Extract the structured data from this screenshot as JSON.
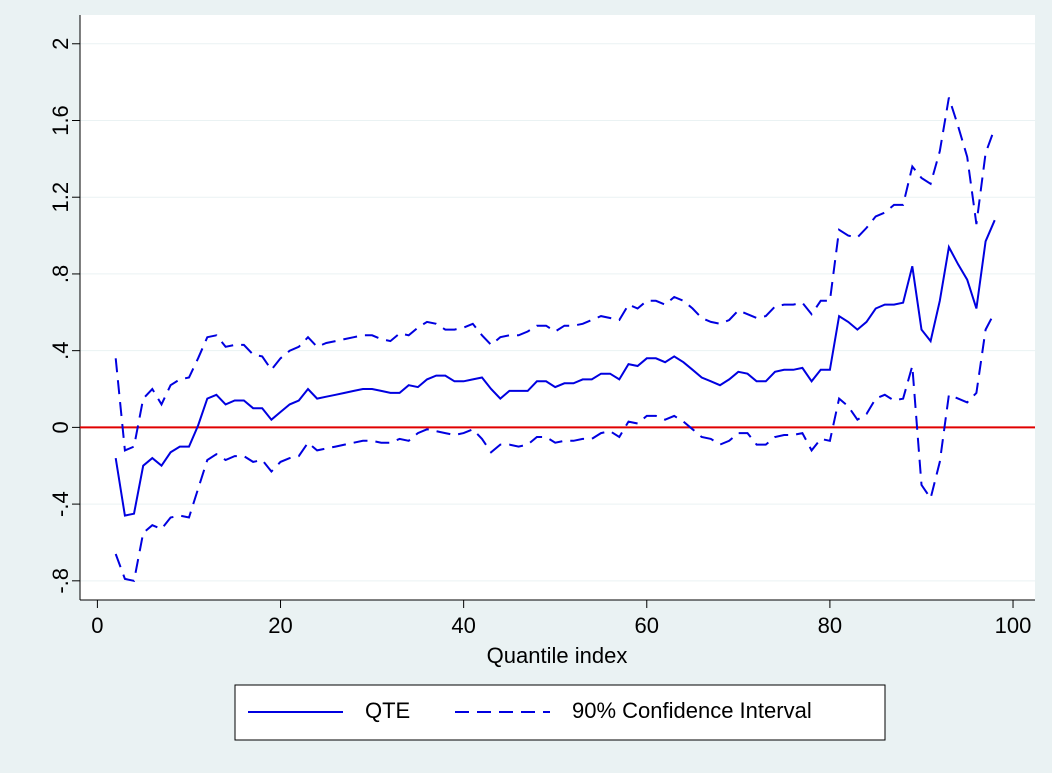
{
  "chart_data": {
    "type": "line",
    "xlabel": "Quantile index",
    "x": [
      2,
      3,
      4,
      5,
      6,
      7,
      8,
      9,
      10,
      11,
      12,
      13,
      14,
      15,
      16,
      17,
      18,
      19,
      20,
      21,
      22,
      23,
      24,
      25,
      26,
      27,
      28,
      29,
      30,
      31,
      32,
      33,
      34,
      35,
      36,
      37,
      38,
      39,
      40,
      41,
      42,
      43,
      44,
      45,
      46,
      47,
      48,
      49,
      50,
      51,
      52,
      53,
      54,
      55,
      56,
      57,
      58,
      59,
      60,
      61,
      62,
      63,
      64,
      65,
      66,
      67,
      68,
      69,
      70,
      71,
      72,
      73,
      74,
      75,
      76,
      77,
      78,
      79,
      80,
      81,
      82,
      83,
      84,
      85,
      86,
      87,
      88,
      89,
      90,
      91,
      92,
      93,
      94,
      95,
      96,
      97,
      98
    ],
    "series": [
      {
        "name": "QTE",
        "color": "#0000e0",
        "dash": false,
        "values": [
          -0.16,
          -0.46,
          -0.45,
          -0.2,
          -0.16,
          -0.2,
          -0.13,
          -0.1,
          -0.1,
          0.01,
          0.15,
          0.17,
          0.12,
          0.14,
          0.14,
          0.1,
          0.1,
          0.04,
          0.08,
          0.12,
          0.14,
          0.2,
          0.15,
          0.16,
          0.17,
          0.18,
          0.19,
          0.2,
          0.2,
          0.19,
          0.18,
          0.18,
          0.22,
          0.21,
          0.25,
          0.27,
          0.27,
          0.24,
          0.24,
          0.25,
          0.26,
          0.2,
          0.15,
          0.19,
          0.19,
          0.19,
          0.24,
          0.24,
          0.21,
          0.23,
          0.23,
          0.25,
          0.25,
          0.28,
          0.28,
          0.25,
          0.33,
          0.32,
          0.36,
          0.36,
          0.34,
          0.37,
          0.34,
          0.3,
          0.26,
          0.24,
          0.22,
          0.25,
          0.29,
          0.28,
          0.24,
          0.24,
          0.29,
          0.3,
          0.3,
          0.31,
          0.24,
          0.3,
          0.3,
          0.58,
          0.55,
          0.51,
          0.55,
          0.62,
          0.64,
          0.64,
          0.65,
          0.84,
          0.51,
          0.45,
          0.66,
          0.94,
          0.85,
          0.77,
          0.62,
          0.97,
          1.08
        ]
      },
      {
        "name": "90% Confidence Interval",
        "color": "#0000e0",
        "dash": true,
        "upper": [
          0.36,
          -0.12,
          -0.1,
          0.15,
          0.2,
          0.12,
          0.22,
          0.25,
          0.26,
          0.36,
          0.47,
          0.48,
          0.42,
          0.43,
          0.43,
          0.38,
          0.37,
          0.3,
          0.36,
          0.4,
          0.42,
          0.47,
          0.42,
          0.44,
          0.45,
          0.46,
          0.47,
          0.48,
          0.48,
          0.46,
          0.45,
          0.49,
          0.48,
          0.52,
          0.55,
          0.54,
          0.51,
          0.51,
          0.52,
          0.54,
          0.48,
          0.43,
          0.47,
          0.48,
          0.48,
          0.5,
          0.53,
          0.53,
          0.5,
          0.53,
          0.53,
          0.54,
          0.56,
          0.58,
          0.57,
          0.56,
          0.64,
          0.62,
          0.66,
          0.66,
          0.64,
          0.68,
          0.66,
          0.62,
          0.57,
          0.55,
          0.54,
          0.56,
          0.61,
          0.59,
          0.57,
          0.58,
          0.63,
          0.64,
          0.64,
          0.65,
          0.59,
          0.66,
          0.66,
          1.03,
          1.0,
          0.99,
          1.04,
          1.1,
          1.12,
          1.16,
          1.16,
          1.36,
          1.3,
          1.27,
          1.44,
          1.72,
          1.57,
          1.41,
          1.06,
          1.43,
          1.56
        ],
        "lower": [
          -0.66,
          -0.79,
          -0.8,
          -0.55,
          -0.51,
          -0.53,
          -0.47,
          -0.46,
          -0.47,
          -0.32,
          -0.17,
          -0.14,
          -0.17,
          -0.15,
          -0.15,
          -0.18,
          -0.17,
          -0.23,
          -0.18,
          -0.16,
          -0.15,
          -0.08,
          -0.12,
          -0.11,
          -0.1,
          -0.09,
          -0.08,
          -0.07,
          -0.07,
          -0.08,
          -0.08,
          -0.06,
          -0.07,
          -0.03,
          -0.01,
          -0.02,
          -0.03,
          -0.04,
          -0.03,
          -0.01,
          -0.06,
          -0.13,
          -0.09,
          -0.09,
          -0.1,
          -0.09,
          -0.05,
          -0.05,
          -0.08,
          -0.07,
          -0.07,
          -0.06,
          -0.06,
          -0.03,
          -0.02,
          -0.05,
          0.03,
          0.02,
          0.06,
          0.06,
          0.04,
          0.06,
          0.03,
          -0.01,
          -0.05,
          -0.06,
          -0.09,
          -0.07,
          -0.03,
          -0.03,
          -0.09,
          -0.09,
          -0.05,
          -0.04,
          -0.04,
          -0.03,
          -0.12,
          -0.06,
          -0.07,
          0.15,
          0.11,
          0.04,
          0.07,
          0.15,
          0.17,
          0.14,
          0.15,
          0.32,
          -0.3,
          -0.37,
          -0.18,
          0.17,
          0.15,
          0.13,
          0.18,
          0.51,
          0.6
        ]
      }
    ],
    "hline": {
      "value": 0,
      "color": "#e00000"
    },
    "xlim": [
      -1.9,
      102.4
    ],
    "xticks": [
      0,
      20,
      40,
      60,
      80,
      100
    ],
    "ylim": [
      -0.9,
      2.15
    ],
    "yticks": [
      {
        "value": -0.8,
        "label": "-.8"
      },
      {
        "value": -0.4,
        "label": "-.4"
      },
      0,
      {
        "value": 0.4,
        "label": ".4"
      },
      {
        "value": 0.8,
        "label": ".8"
      },
      1.2,
      1.6,
      2
    ],
    "grid": true,
    "legend": "bottom"
  }
}
